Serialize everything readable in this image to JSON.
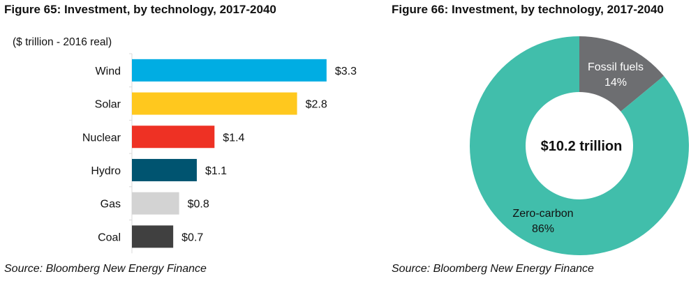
{
  "chart_data": [
    {
      "type": "bar",
      "orientation": "horizontal",
      "title": "Figure 65: Investment, by technology, 2017-2040",
      "ylabel": "($ trillion - 2016 real)",
      "categories": [
        "Wind",
        "Solar",
        "Nuclear",
        "Hydro",
        "Gas",
        "Coal"
      ],
      "values": [
        3.3,
        2.8,
        1.4,
        1.1,
        0.8,
        0.7
      ],
      "data_labels": [
        "$3.3",
        "$2.8",
        "$1.4",
        "$1.1",
        "$0.8",
        "$0.7"
      ],
      "colors": [
        "#00ADE3",
        "#FFC81E",
        "#EE3124",
        "#005470",
        "#D3D3D3",
        "#404040"
      ],
      "grid": false,
      "source": "Source: Bloomberg New Energy Finance"
    },
    {
      "type": "pie",
      "variant": "donut",
      "title": "Figure 66: Investment, by technology, 2017-2040",
      "center_label": "$10.2 trillion",
      "slices": [
        {
          "name": "Fossil fuels",
          "value": 14,
          "label": "14%",
          "color": "#6D6E71"
        },
        {
          "name": "Zero-carbon",
          "value": 86,
          "label": "86%",
          "color": "#41BEAB"
        }
      ],
      "source": "Source: Bloomberg New Energy Finance"
    }
  ]
}
